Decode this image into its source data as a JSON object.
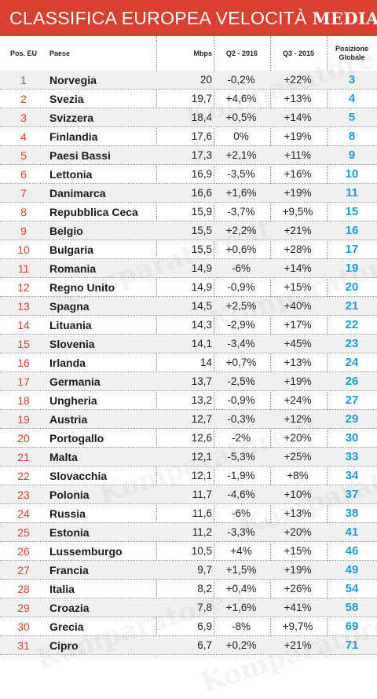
{
  "banner": {
    "title_light": "CLASSIFICA EUROPEA VELOCITÀ",
    "title_bold": "MEDIA"
  },
  "watermark": "Komparatore.it",
  "colors": {
    "banner": "#d9402f",
    "rank_eu": "#d9402f",
    "rank_global": "#1a9dcf",
    "row_stripe": "#f0f0f0"
  },
  "chart_data": {
    "type": "table",
    "columns": [
      "Pos. EU",
      "Paese",
      "Mbps",
      "Q2 - 2016",
      "Q3 - 2015",
      "Posizione Globale"
    ],
    "rows": [
      [
        "1",
        "Norvegia",
        "20",
        "-0,2%",
        "+22%",
        "3"
      ],
      [
        "2",
        "Svezia",
        "19,7",
        "+4,6%",
        "+13%",
        "4"
      ],
      [
        "3",
        "Svizzera",
        "18,4",
        "+0,5%",
        "+14%",
        "5"
      ],
      [
        "4",
        "Finlandia",
        "17,6",
        "0%",
        "+19%",
        "8"
      ],
      [
        "5",
        "Paesi Bassi",
        "17,3",
        "+2,1%",
        "+11%",
        "9"
      ],
      [
        "6",
        "Lettonia",
        "16,9",
        "-3,5%",
        "+16%",
        "10"
      ],
      [
        "7",
        "Danimarca",
        "16,6",
        "+1,6%",
        "+19%",
        "11"
      ],
      [
        "8",
        "Repubblica Ceca",
        "15,9",
        "-3,7%",
        "+9,5%",
        "15"
      ],
      [
        "9",
        "Belgio",
        "15,5",
        "+2,2%",
        "+21%",
        "16"
      ],
      [
        "10",
        "Bulgaria",
        "15,5",
        "+0,6%",
        "+28%",
        "17"
      ],
      [
        "11",
        "Romania",
        "14,9",
        "-6%",
        "+14%",
        "19"
      ],
      [
        "12",
        "Regno Unito",
        "14,9",
        "-0,9%",
        "+15%",
        "20"
      ],
      [
        "13",
        "Spagna",
        "14,5",
        "+2,5%",
        "+40%",
        "21"
      ],
      [
        "14",
        "Lituania",
        "14,3",
        "-2,9%",
        "+17%",
        "22"
      ],
      [
        "15",
        "Slovenia",
        "14,1",
        "-3,4%",
        "+45%",
        "23"
      ],
      [
        "16",
        "Irlanda",
        "14",
        "+0,7%",
        "+13%",
        "24"
      ],
      [
        "17",
        "Germania",
        "13,7",
        "-2,5%",
        "+19%",
        "26"
      ],
      [
        "18",
        "Ungheria",
        "13,2",
        "-0,9%",
        "+24%",
        "27"
      ],
      [
        "19",
        "Austria",
        "12,7",
        "-0,3%",
        "+12%",
        "29"
      ],
      [
        "20",
        "Portogallo",
        "12,6",
        "-2%",
        "+20%",
        "30"
      ],
      [
        "21",
        "Malta",
        "12,1",
        "-5,3%",
        "+25%",
        "33"
      ],
      [
        "22",
        "Slovacchia",
        "12,1",
        "-1,9%",
        "+8%",
        "34"
      ],
      [
        "23",
        "Polonia",
        "11,7",
        "-4,6%",
        "+10%",
        "37"
      ],
      [
        "24",
        "Russia",
        "11,6",
        "-6%",
        "+13%",
        "38"
      ],
      [
        "25",
        "Estonia",
        "11,2",
        "-3,3%",
        "+20%",
        "41"
      ],
      [
        "26",
        "Lussemburgo",
        "10,5",
        "+4%",
        "+15%",
        "46"
      ],
      [
        "27",
        "Francia",
        "9,7",
        "+1,5%",
        "+19%",
        "49"
      ],
      [
        "28",
        "Italia",
        "8,2",
        "+0,4%",
        "+26%",
        "54"
      ],
      [
        "29",
        "Croazia",
        "7,8",
        "+1,6%",
        "+41%",
        "58"
      ],
      [
        "30",
        "Grecia",
        "6,9",
        "-8%",
        "+9,7%",
        "69"
      ],
      [
        "31",
        "Cipro",
        "6,7",
        "+0,2%",
        "+21%",
        "71"
      ]
    ]
  }
}
